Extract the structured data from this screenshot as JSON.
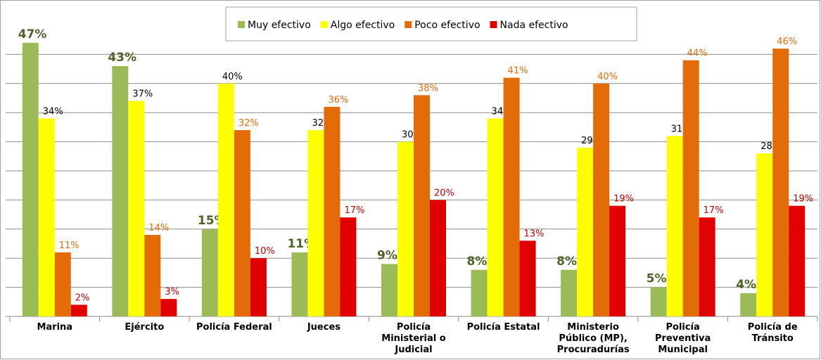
{
  "chart_data": {
    "type": "bar",
    "categories": [
      "Marina",
      "Ejército",
      "Policía Federal",
      "Jueces",
      "Policía Ministerial o Judicial",
      "Policía Estatal",
      "Ministerio Público (MP), Procuradurías",
      "Policía Preventiva Municipal",
      "Policía de Tránsito"
    ],
    "series": [
      {
        "name": "Muy efectivo",
        "color": "#9bbb59",
        "label_color": "#4f6228",
        "values": [
          47,
          43,
          15,
          11,
          9,
          8,
          8,
          5,
          4
        ],
        "value_labels": [
          "47%",
          "43%",
          "15%",
          "11%",
          "9%",
          "8%",
          "8%",
          "5%",
          "4%"
        ]
      },
      {
        "name": "Algo efectivo",
        "color": "#ffff00",
        "label_color": "#000000",
        "values": [
          34,
          37,
          40,
          32,
          30,
          34,
          29,
          31,
          28
        ],
        "value_labels": [
          "34%",
          "37%",
          "40%",
          "32%",
          "30%",
          "34%",
          "29%",
          "31%",
          "28%"
        ]
      },
      {
        "name": "Poco efectivo",
        "color": "#e36c09",
        "label_color": "#e36c09",
        "values": [
          11,
          14,
          32,
          36,
          38,
          41,
          40,
          44,
          46
        ],
        "value_labels": [
          "11%",
          "14%",
          "32%",
          "36%",
          "38%",
          "41%",
          "40%",
          "44%",
          "46%"
        ]
      },
      {
        "name": "Nada efectivo",
        "color": "#e00000",
        "label_color": "#c00000",
        "values": [
          2,
          3,
          10,
          17,
          20,
          13,
          19,
          17,
          19
        ],
        "value_labels": [
          "2%",
          "3%",
          "10%",
          "17%",
          "20%",
          "13%",
          "19%",
          "17%",
          "19%"
        ]
      }
    ],
    "ylim": [
      0,
      50
    ],
    "yticks": [
      0,
      5,
      10,
      15,
      20,
      25,
      30,
      35,
      40,
      45
    ],
    "grid": true,
    "legend": "top"
  }
}
